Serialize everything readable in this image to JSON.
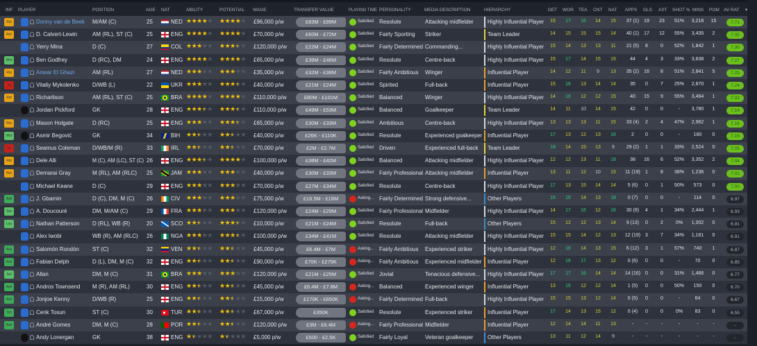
{
  "headers": {
    "inf": "INF",
    "player": "PLAYER",
    "position": "POSITION",
    "age": "AGE",
    "nat": "NAT",
    "ability": "ABILITY",
    "potential": "POTENTIAL",
    "wage": "WAGE",
    "transfer_value": "TRANSFER VALUE",
    "playing_time": "PLAYING TIME",
    "personality": "PERSONALITY",
    "media": "MEDIA DESCRIPTION",
    "hierarchy": "HIERARCHY",
    "det": "DET",
    "wor": "WOR",
    "tea": "TEA",
    "cnt": "CNT",
    "nat_attr": "NAT",
    "apps": "APPS",
    "gls": "GLS",
    "ast": "AST",
    "shot": "SHOT %",
    "mins": "MINS",
    "pom": "POM",
    "av_rat": "AV RAT",
    "sort_icon": "triangle-down-icon"
  },
  "colors": {
    "accent_link": "#6fa8e8",
    "star": "#f2c10f",
    "rating_good": "#6bbf1f",
    "attr_high": "#2fd07a",
    "attr_mid": "#d4d23a"
  },
  "rows": [
    {
      "inf": "Rst",
      "name": "Donny van de Beek",
      "link": true,
      "pos": "M/AM (C)",
      "age": "25",
      "nat": "NED",
      "ability": 4,
      "potential": 4,
      "wage": "£96,000 p/w",
      "tv": "£83M - £99M",
      "pt": "Satisfied",
      "personality": "Resolute",
      "media": "Attacking midfielder",
      "hierarchy": "Highly Influential Player",
      "det": "15",
      "wor": "17",
      "tea": "16",
      "cnt": "14",
      "natt": "15",
      "apps": "37 (1)",
      "gls": "19",
      "ast": "23",
      "shot": "51%",
      "mins": "3,218",
      "pom": "15",
      "avrat": "7.71"
    },
    {
      "inf": "Rst",
      "name": "D. Calvert-Lewin",
      "pos": "AM (RL), ST (C)",
      "age": "25",
      "nat": "ENG",
      "ability": 4,
      "potential": 4,
      "wage": "£70,000 p/w",
      "tv": "£60M - £72M",
      "pt": "Satisfied",
      "personality": "Fairly Sporting",
      "media": "Striker",
      "hierarchy": "Team Leader",
      "det": "14",
      "wor": "15",
      "tea": "15",
      "cnt": "15",
      "natt": "14",
      "apps": "40 (1)",
      "gls": "17",
      "ast": "12",
      "shot": "55%",
      "mins": "3,435",
      "pom": "2",
      "avrat": "7.35"
    },
    {
      "inf": "",
      "name": "Yerry Mina",
      "pos": "D (C)",
      "age": "27",
      "nat": "COL",
      "ability": 3,
      "potential": 3.5,
      "wage": "£120,000 p/w",
      "tv": "£22M - £24M",
      "pt": "Satisfied",
      "personality": "Fairly Determined",
      "media": "Commanding...",
      "hierarchy": "Highly Influential Player",
      "det": "15",
      "wor": "14",
      "tea": "13",
      "cnt": "13",
      "natt": "11",
      "apps": "21 (5)",
      "gls": "8",
      "ast": "0",
      "shot": "52%",
      "mins": "1,842",
      "pom": "1",
      "avrat": "7.30"
    },
    {
      "inf": "Wnt",
      "name": "Ben Godfrey",
      "pos": "D (RC), DM",
      "age": "24",
      "nat": "ENG",
      "ability": 4,
      "potential": 4,
      "wage": "£65,000 p/w",
      "tv": "£39M - £46M",
      "pt": "Satisfied",
      "personality": "Resolute",
      "media": "Centre-back",
      "hierarchy": "Highly Influential Player",
      "det": "15",
      "wor": "17",
      "tea": "14",
      "cnt": "15",
      "natt": "15",
      "apps": "44",
      "gls": "4",
      "ast": "3",
      "shot": "33%",
      "mins": "3,838",
      "pom": "2",
      "avrat": "7.27"
    },
    {
      "inf": "Rst",
      "name": "Anwar El Ghazi",
      "link": true,
      "pos": "AM (RL)",
      "age": "27",
      "nat": "NED",
      "ability": 3,
      "potential": 3,
      "wage": "£35,000 p/w",
      "tv": "£32M - £38M",
      "pt": "Satisfied",
      "personality": "Fairly Ambitious",
      "media": "Winger",
      "hierarchy": "Influential Player",
      "det": "14",
      "wor": "12",
      "tea": "11",
      "cnt": "9",
      "natt": "13",
      "apps": "35 (2)",
      "gls": "16",
      "ast": "8",
      "shot": "51%",
      "mins": "2,841",
      "pom": "5",
      "avrat": "7.25"
    },
    {
      "inf": "Inj",
      "name": "Vitaliy Mykolenko",
      "pos": "D/WB (L)",
      "age": "22",
      "nat": "UKR",
      "ability": 3,
      "potential": 3.5,
      "wage": "£40,000 p/w",
      "tv": "£21M - £24M",
      "pt": "Satisfied",
      "personality": "Spirited",
      "media": "Full-back",
      "hierarchy": "Influential Player",
      "det": "15",
      "wor": "16",
      "tea": "13",
      "cnt": "14",
      "natt": "14",
      "apps": "35",
      "gls": "0",
      "ast": "7",
      "shot": "25%",
      "mins": "2,870",
      "pom": "1",
      "avrat": "7.24"
    },
    {
      "inf": "Rst",
      "name": "Richarlison",
      "pos": "AM (RL), ST (C)",
      "age": "25",
      "nat": "BRA",
      "ability": 4,
      "potential": 4,
      "wage": "£110,000 p/w",
      "tv": "£80M - £101M",
      "pt": "Satisfied",
      "personality": "Balanced",
      "media": "Winger",
      "hierarchy": "Highly Influential Player",
      "det": "14",
      "wor": "16",
      "tea": "12",
      "cnt": "12",
      "natt": "15",
      "apps": "40",
      "gls": "15",
      "ast": "9",
      "shot": "55%",
      "mins": "3,464",
      "pom": "1",
      "avrat": "7.22"
    },
    {
      "inf": "",
      "name": "Jordan Pickford",
      "gk": true,
      "pos": "GK",
      "age": "28",
      "nat": "ENG",
      "ability": 3.5,
      "potential": 3.5,
      "wage": "£110,000 p/w",
      "tv": "£49M - £53M",
      "pt": "Satisfied",
      "personality": "Balanced",
      "media": "Goalkeeper",
      "hierarchy": "Team Leader",
      "det": "14",
      "wor": "11",
      "tea": "10",
      "cnt": "14",
      "natt": "15",
      "apps": "42",
      "gls": "0",
      "ast": "0",
      "shot": "-",
      "mins": "3,780",
      "pom": "1",
      "avrat": "7.19"
    },
    {
      "inf": "Rst",
      "name": "Mason Holgate",
      "pos": "D (RC)",
      "age": "25",
      "nat": "ENG",
      "ability": 3,
      "potential": 3.5,
      "wage": "£65,000 p/w",
      "tv": "£30M - £33M",
      "pt": "Satisfied",
      "personality": "Ambitious",
      "media": "Centre-back",
      "hierarchy": "Highly Influential Player",
      "det": "13",
      "wor": "13",
      "tea": "13",
      "cnt": "11",
      "natt": "15",
      "apps": "33 (4)",
      "gls": "2",
      "ast": "4",
      "shot": "47%",
      "mins": "2,962",
      "pom": "1",
      "avrat": "7.16"
    },
    {
      "inf": "Wnt",
      "name": "Asmir Begović",
      "gk": true,
      "pos": "GK",
      "age": "34",
      "nat": "BIH",
      "ability": 2.5,
      "potential": 2.5,
      "wage": "£40,000 p/w",
      "tv": "£26K - £110K",
      "pt": "Satisfied",
      "personality": "Resolute",
      "media": "Experienced goalkeeper",
      "hierarchy": "Influential Player",
      "det": "17",
      "wor": "13",
      "tea": "12",
      "cnt": "13",
      "natt": "16",
      "apps": "2",
      "gls": "0",
      "ast": "0",
      "shot": "-",
      "mins": "180",
      "pom": "0",
      "avrat": "7.15"
    },
    {
      "inf": "Inj",
      "name": "Seamus Coleman",
      "pos": "D/WB/M (R)",
      "age": "33",
      "nat": "IRL",
      "ability": 2.5,
      "potential": 2.5,
      "wage": "£70,000 p/w",
      "tv": "£2M - £2.7M",
      "pt": "Satisfied",
      "personality": "Driven",
      "media": "Experienced full-back",
      "hierarchy": "Team Leader",
      "det": "18",
      "wor": "14",
      "tea": "15",
      "cnt": "13",
      "natt": "9",
      "apps": "29 (2)",
      "gls": "1",
      "ast": "1",
      "shot": "33%",
      "mins": "2,524",
      "pom": "0",
      "avrat": "7.05"
    },
    {
      "inf": "Rst",
      "name": "Dele Alli",
      "pos": "M (C), AM (LC), ST (C)",
      "age": "26",
      "nat": "ENG",
      "ability": 3.5,
      "potential": 4,
      "wage": "£100,000 p/w",
      "tv": "£38M - £42M",
      "pt": "Satisfied",
      "personality": "Balanced",
      "media": "Attacking midfielder",
      "hierarchy": "Highly Influential Player",
      "det": "12",
      "wor": "12",
      "tea": "13",
      "cnt": "11",
      "natt": "18",
      "apps": "38",
      "gls": "16",
      "ast": "6",
      "shot": "52%",
      "mins": "3,352",
      "pom": "2",
      "avrat": "7.04"
    },
    {
      "inf": "Rst",
      "name": "Demarai Gray",
      "pos": "M (RL), AM (RLC)",
      "age": "25",
      "nat": "JAM",
      "ability": 3,
      "potential": 3,
      "wage": "£40,000 p/w",
      "tv": "£30M - £33M",
      "pt": "Satisfied",
      "personality": "Fairly Professional",
      "media": "Attacking midfielder",
      "hierarchy": "Influential Player",
      "det": "13",
      "wor": "11",
      "tea": "12",
      "cnt": "10",
      "natt": "15",
      "apps": "11 (19)",
      "gls": "1",
      "ast": "8",
      "shot": "38%",
      "mins": "1,236",
      "pom": "0",
      "avrat": "7.02"
    },
    {
      "inf": "",
      "name": "Michael Keane",
      "pos": "D (C)",
      "age": "29",
      "nat": "ENG",
      "ability": 3,
      "potential": 3,
      "wage": "£70,000 p/w",
      "tv": "£27M - £34M",
      "pt": "Satisfied",
      "personality": "Resolute",
      "media": "Centre-back",
      "hierarchy": "Highly Influential Player",
      "det": "17",
      "wor": "13",
      "tea": "15",
      "cnt": "14",
      "natt": "14",
      "apps": "5 (6)",
      "gls": "0",
      "ast": "1",
      "shot": "50%",
      "mins": "573",
      "pom": "0",
      "avrat": "7.00"
    },
    {
      "inf": "Ask",
      "name": "J. Gbamin",
      "pos": "D (C), DM, M (C)",
      "age": "26",
      "nat": "CIV",
      "ability": 3,
      "potential": 3,
      "wage": "£75,000 p/w",
      "tv": "£16.5M - £18M",
      "pt": "Asking...",
      "personality": "Fairly Determined",
      "media": "Strong defensive...",
      "hierarchy": "Other Players",
      "det": "16",
      "wor": "16",
      "tea": "14",
      "cnt": "13",
      "natt": "18",
      "apps": "0 (7)",
      "gls": "0",
      "ast": "0",
      "shot": "-",
      "mins": "114",
      "pom": "0",
      "avrat": "6.97"
    },
    {
      "inf": "Set",
      "name": "A. Doucouré",
      "pos": "DM, M/AM (C)",
      "age": "29",
      "nat": "FRA",
      "ability": 3,
      "potential": 3,
      "wage": "£120,000 p/w",
      "tv": "£24M - £29M",
      "pt": "Satisfied",
      "personality": "Fairly Professional",
      "media": "Midfielder",
      "hierarchy": "Highly Influential Player",
      "det": "14",
      "wor": "17",
      "tea": "16",
      "cnt": "12",
      "natt": "16",
      "apps": "30 (9)",
      "gls": "4",
      "ast": "1",
      "shot": "34%",
      "mins": "2,444",
      "pom": "1",
      "avrat": "6.93"
    },
    {
      "inf": "Lsa",
      "name": "Nathan Patterson",
      "pos": "D (RL), WB (R)",
      "age": "20",
      "nat": "SCO",
      "ability": 2.5,
      "potential": 3.5,
      "wage": "£10,000 p/w",
      "tv": "£21M - £24M",
      "pt": "Satisfied",
      "personality": "Resolute",
      "media": "Full-back",
      "hierarchy": "Other Players",
      "det": "15",
      "wor": "12",
      "tea": "12",
      "cnt": "13",
      "natt": "14",
      "apps": "9 (13)",
      "gls": "0",
      "ast": "2",
      "shot": "0%",
      "mins": "1,002",
      "pom": "0",
      "avrat": "6.91"
    },
    {
      "inf": "",
      "name": "Alex Iwobi",
      "pos": "WB (R), AM (RLC)",
      "age": "26",
      "nat": "NGA",
      "ability": 3,
      "potential": 3.5,
      "wage": "£100,000 p/w",
      "tv": "£34M - £41M",
      "pt": "Satisfied",
      "personality": "Resolute",
      "media": "Attacking midfielder",
      "hierarchy": "Highly Influential Player",
      "det": "15",
      "wor": "15",
      "tea": "14",
      "cnt": "12",
      "natt": "13",
      "apps": "12 (19)",
      "gls": "3",
      "ast": "7",
      "shot": "34%",
      "mins": "1,181",
      "pom": "0",
      "avrat": "6.91"
    },
    {
      "inf": "Ask",
      "name": "Salomón Rondón",
      "pos": "ST (C)",
      "age": "32",
      "nat": "VEN",
      "ability": 2.5,
      "potential": 2.5,
      "wage": "£45,000 p/w",
      "tv": "£6.4M - £7M",
      "pt": "Asking...",
      "personality": "Fairly Ambitious",
      "media": "Experienced striker",
      "hierarchy": "Highly Influential Player",
      "det": "12",
      "wor": "16",
      "tea": "14",
      "cnt": "13",
      "natt": "15",
      "apps": "6 (12)",
      "gls": "3",
      "ast": "1",
      "shot": "57%",
      "mins": "740",
      "pom": "1",
      "avrat": "6.87"
    },
    {
      "inf": "Ask",
      "name": "Fabian Delph",
      "pos": "D (L), DM, M (C)",
      "age": "32",
      "nat": "ENG",
      "ability": 2.5,
      "potential": 2.5,
      "wage": "£90,000 p/w",
      "tv": "£70K - £275K",
      "pt": "Asking...",
      "personality": "Fairly Ambitious",
      "media": "Experienced midfielder",
      "hierarchy": "Influential Player",
      "det": "12",
      "wor": "16",
      "tea": "17",
      "cnt": "13",
      "natt": "12",
      "apps": "0 (6)",
      "gls": "0",
      "ast": "0",
      "shot": "-",
      "mins": "70",
      "pom": "0",
      "avrat": "6.85"
    },
    {
      "inf": "Set",
      "name": "Allan",
      "pos": "DM, M (C)",
      "age": "31",
      "nat": "BRA",
      "ability": 3,
      "potential": 3,
      "wage": "£120,000 p/w",
      "tv": "£21M - £25M",
      "pt": "Satisfied",
      "personality": "Jovial",
      "media": "Tenacious defensive...",
      "hierarchy": "Highly Influential Player",
      "det": "17",
      "wor": "17",
      "tea": "16",
      "cnt": "14",
      "natt": "14",
      "apps": "14 (16)",
      "gls": "0",
      "ast": "0",
      "shot": "31%",
      "mins": "1,466",
      "pom": "0",
      "avrat": "6.77"
    },
    {
      "inf": "Ask",
      "name": "Andros Townsend",
      "pos": "M (R), AM (RL)",
      "age": "30",
      "nat": "ENG",
      "ability": 2.5,
      "potential": 2.5,
      "wage": "£45,000 p/w",
      "tv": "£6.4M - £7.8M",
      "pt": "Asking...",
      "personality": "Balanced",
      "media": "Experienced winger",
      "hierarchy": "Influential Player",
      "det": "13",
      "wor": "16",
      "tea": "12",
      "cnt": "12",
      "natt": "14",
      "apps": "1 (5)",
      "gls": "0",
      "ast": "0",
      "shot": "50%",
      "mins": "150",
      "pom": "0",
      "avrat": "6.70"
    },
    {
      "inf": "Ask",
      "name": "Jonjoe Kenny",
      "pos": "D/WB (R)",
      "age": "25",
      "nat": "ENG",
      "ability": 2.5,
      "potential": 2.5,
      "wage": "£15,000 p/w",
      "tv": "£170K - £650K",
      "pt": "Asking...",
      "personality": "Fairly Determined",
      "media": "Full-back",
      "hierarchy": "Highly Influential Player",
      "det": "15",
      "wor": "15",
      "tea": "13",
      "cnt": "12",
      "natt": "14",
      "apps": "0 (5)",
      "gls": "0",
      "ast": "0",
      "shot": "-",
      "mins": "64",
      "pom": "0",
      "avrat": "6.67"
    },
    {
      "inf": "Trn",
      "name": "Cenk Tosun",
      "pos": "ST (C)",
      "age": "30",
      "nat": "TUR",
      "ability": 2.5,
      "potential": 2.5,
      "wage": "£67,000 p/w",
      "tv": "£350K",
      "pt": "Satisfied",
      "personality": "Resolute",
      "media": "Experienced striker",
      "hierarchy": "Influential Player",
      "det": "17",
      "wor": "14",
      "tea": "13",
      "cnt": "15",
      "natt": "12",
      "apps": "0 (4)",
      "gls": "0",
      "ast": "0",
      "shot": "0%",
      "mins": "83",
      "pom": "0",
      "avrat": "6.55"
    },
    {
      "inf": "Ask",
      "name": "André Gomes",
      "pos": "DM, M (C)",
      "age": "28",
      "nat": "POR",
      "ability": 2.5,
      "potential": 2.5,
      "wage": "£120,000 p/w",
      "tv": "£3M - £6.4M",
      "pt": "Asking...",
      "personality": "Fairly Professional",
      "media": "Midfielder",
      "hierarchy": "Influential Player",
      "det": "12",
      "wor": "14",
      "tea": "14",
      "cnt": "11",
      "natt": "13",
      "apps": "-",
      "gls": "-",
      "ast": "-",
      "shot": "-",
      "mins": "-",
      "pom": "-",
      "avrat": "-"
    },
    {
      "inf": "",
      "name": "Andy Lonergan",
      "gk": true,
      "pos": "GK",
      "age": "38",
      "nat": "ENG",
      "ability": 1.5,
      "potential": 1.5,
      "wage": "£5,000 p/w",
      "tv": "£500 - £2.5K",
      "pt": "Satisfied",
      "personality": "Fairly Loyal",
      "media": "Veteran goalkeeper",
      "hierarchy": "Other Players",
      "det": "13",
      "wor": "11",
      "tea": "12",
      "cnt": "14",
      "natt": "9",
      "apps": "-",
      "gls": "-",
      "ast": "-",
      "shot": "-",
      "mins": "-",
      "pom": "-",
      "avrat": "-"
    }
  ]
}
